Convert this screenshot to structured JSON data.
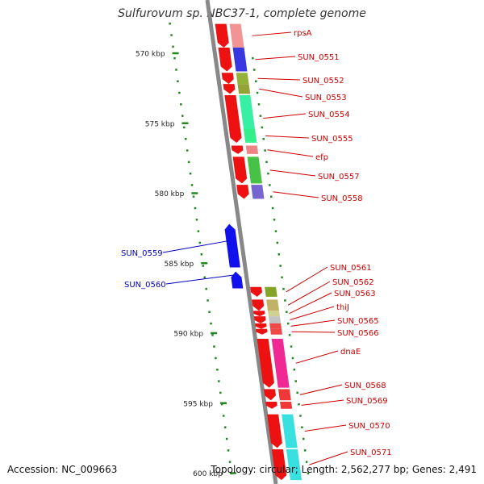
{
  "title": "Sulfurovum sp. NBC37-1, complete genome",
  "footer": {
    "accession": "Accession: NC_009663",
    "topology": "Topology: circular; Length: 2,562,277 bp; Genes: 2,491"
  },
  "ruler": {
    "unit": "kbp",
    "ticks": [
      570,
      575,
      580,
      585,
      590,
      595,
      600
    ]
  },
  "colors": {
    "forward_gene": "#ee1111",
    "reverse_gene": "#1111ee",
    "forward_label": "#cc0000",
    "reverse_label": "#0000bb",
    "backbone": "#888888",
    "tick": "#228822"
  },
  "forward_genes": [
    {
      "label": "rpsA",
      "start": 567.9,
      "end": 569.6,
      "color": "#ee8888"
    },
    {
      "label": "SUN_0551",
      "start": 569.6,
      "end": 571.3,
      "color": "#2222dd"
    },
    {
      "label": "SUN_0552",
      "start": 571.4,
      "end": 572.2,
      "color": "#88aa22"
    },
    {
      "label": "SUN_0553",
      "start": 572.2,
      "end": 572.9,
      "color": "#889922"
    },
    {
      "label": "SUN_0554",
      "start": 573.0,
      "end": 576.3,
      "color": "#22ee99"
    },
    {
      "label": "SUN_0555",
      "start": 575.4,
      "end": 576.4,
      "color": "#33ee88"
    },
    {
      "label": "efp",
      "start": 576.6,
      "end": 577.2,
      "color": "#ee7777"
    },
    {
      "label": "SUN_0557",
      "start": 577.4,
      "end": 579.3,
      "color": "#33bb33"
    },
    {
      "label": "SUN_0558",
      "start": 579.4,
      "end": 580.4,
      "color": "#6655cc"
    },
    {
      "label": "SUN_0561",
      "start": 586.7,
      "end": 587.4,
      "color": "#779911"
    },
    {
      "label": "SUN_0562",
      "start": 587.6,
      "end": 588.4,
      "color": "#bbaa55"
    },
    {
      "label": "SUN_0563",
      "start": 588.4,
      "end": 588.8,
      "color": "#cccc88"
    },
    {
      "label": "thiJ",
      "start": 588.8,
      "end": 589.3,
      "color": "#bbbbbb"
    },
    {
      "label": "SUN_0565",
      "start": 589.3,
      "end": 589.7,
      "color": "#ee3333"
    },
    {
      "label": "SUN_0566",
      "start": 589.7,
      "end": 590.1,
      "color": "#ee3333"
    },
    {
      "label": "dnaE",
      "start": 590.4,
      "end": 593.9,
      "color": "#ee1188"
    },
    {
      "label": "SUN_0568",
      "start": 594.0,
      "end": 594.8,
      "color": "#ee2222"
    },
    {
      "label": "SUN_0569",
      "start": 594.9,
      "end": 595.4,
      "color": "#ee2222"
    },
    {
      "label": "SUN_0570",
      "start": 595.8,
      "end": 598.2,
      "color": "#22dddd"
    },
    {
      "label": "SUN_0571",
      "start": 598.3,
      "end": 600.5,
      "color": "#22dddd"
    }
  ],
  "reverse_genes": [
    {
      "label": "SUN_0559",
      "start": 582.2,
      "end": 585.3
    },
    {
      "label": "SUN_0560",
      "start": 585.6,
      "end": 586.8
    }
  ]
}
